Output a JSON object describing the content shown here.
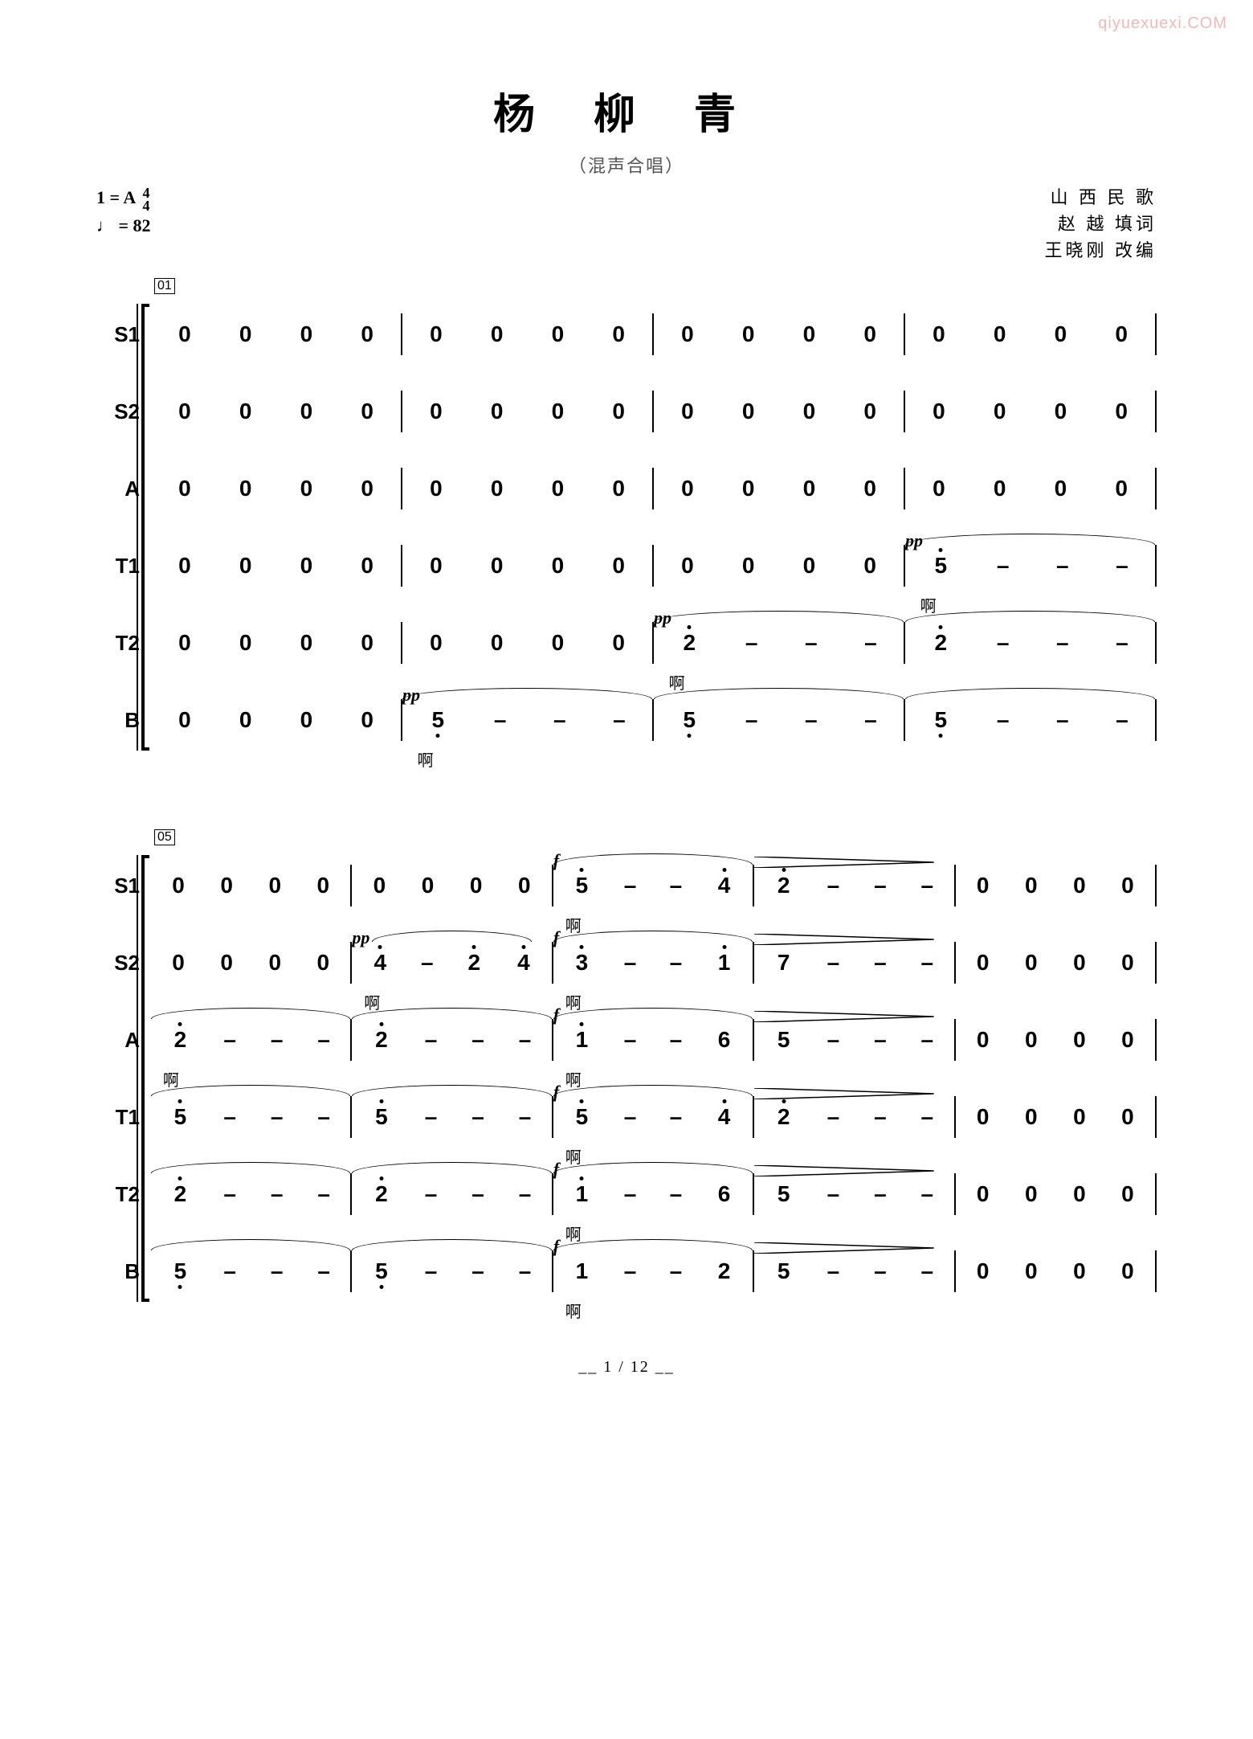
{
  "watermark": "qiyuexuexi.COM",
  "title": "杨  柳  青",
  "subtitle": "（混声合唱）",
  "key": "1 = A",
  "time_top": "4",
  "time_bottom": "4",
  "tempo": "♩ = 82",
  "credits": [
    "山 西 民 歌",
    "赵  越 填词",
    "王晓刚 改编"
  ],
  "page_num": "1 / 12",
  "measure_num_1": "01",
  "measure_num_2": "05",
  "lyric_ah": "啊",
  "dyn_pp": "pp",
  "dyn_f": "f",
  "voices": [
    "S1",
    "S2",
    "A",
    "T1",
    "T2",
    "B"
  ],
  "system1": {
    "S1": [
      [
        "0",
        "0",
        "0",
        "0"
      ],
      [
        "0",
        "0",
        "0",
        "0"
      ],
      [
        "0",
        "0",
        "0",
        "0"
      ],
      [
        "0",
        "0",
        "0",
        "0"
      ]
    ],
    "S2": [
      [
        "0",
        "0",
        "0",
        "0"
      ],
      [
        "0",
        "0",
        "0",
        "0"
      ],
      [
        "0",
        "0",
        "0",
        "0"
      ],
      [
        "0",
        "0",
        "0",
        "0"
      ]
    ],
    "A": [
      [
        "0",
        "0",
        "0",
        "0"
      ],
      [
        "0",
        "0",
        "0",
        "0"
      ],
      [
        "0",
        "0",
        "0",
        "0"
      ],
      [
        "0",
        "0",
        "0",
        "0"
      ]
    ],
    "T1": [
      [
        "0",
        "0",
        "0",
        "0"
      ],
      [
        "0",
        "0",
        "0",
        "0"
      ],
      [
        "0",
        "0",
        "0",
        "0"
      ],
      [
        "5̇",
        "–",
        "–",
        "–"
      ]
    ],
    "T2": [
      [
        "0",
        "0",
        "0",
        "0"
      ],
      [
        "0",
        "0",
        "0",
        "0"
      ],
      [
        "2̇",
        "–",
        "–",
        "–"
      ],
      [
        "2̇",
        "–",
        "–",
        "–"
      ]
    ],
    "B": [
      [
        "0",
        "0",
        "0",
        "0"
      ],
      [
        "5̣",
        "–",
        "–",
        "–"
      ],
      [
        "5̣",
        "–",
        "–",
        "–"
      ],
      [
        "5̣",
        "–",
        "–",
        "–"
      ]
    ]
  },
  "system2": {
    "S1": [
      [
        "0",
        "0",
        "0",
        "0"
      ],
      [
        "0",
        "0",
        "0",
        "0"
      ],
      [
        "5̇",
        "–",
        "–",
        "4̇"
      ],
      [
        "2̇",
        "–",
        "–",
        "–"
      ],
      [
        "0",
        "0",
        "0",
        "0"
      ]
    ],
    "S2": [
      [
        "0",
        "0",
        "0",
        "0"
      ],
      [
        "4̇",
        "–",
        "2̇",
        "4̇"
      ],
      [
        "3̇",
        "–",
        "–",
        "1̇"
      ],
      [
        "7",
        "–",
        "–",
        "–"
      ],
      [
        "0",
        "0",
        "0",
        "0"
      ]
    ],
    "A": [
      [
        "2̇",
        "–",
        "–",
        "–"
      ],
      [
        "2̇",
        "–",
        "–",
        "–"
      ],
      [
        "1̇",
        "–",
        "–",
        "6"
      ],
      [
        "5",
        "–",
        "–",
        "–"
      ],
      [
        "0",
        "0",
        "0",
        "0"
      ]
    ],
    "T1": [
      [
        "5̇",
        "–",
        "–",
        "–"
      ],
      [
        "5̇",
        "–",
        "–",
        "–"
      ],
      [
        "5̇",
        "–",
        "–",
        "4̇"
      ],
      [
        "2̇",
        "–",
        "–",
        "–"
      ],
      [
        "0",
        "0",
        "0",
        "0"
      ]
    ],
    "T2": [
      [
        "2̇",
        "–",
        "–",
        "–"
      ],
      [
        "2̇",
        "–",
        "–",
        "–"
      ],
      [
        "1̇",
        "–",
        "–",
        "6"
      ],
      [
        "5",
        "–",
        "–",
        "–"
      ],
      [
        "0",
        "0",
        "0",
        "0"
      ]
    ],
    "B": [
      [
        "5̣",
        "–",
        "–",
        "–"
      ],
      [
        "5̣",
        "–",
        "–",
        "–"
      ],
      [
        "1",
        "–",
        "–",
        "2"
      ],
      [
        "5",
        "–",
        "–",
        "–"
      ],
      [
        "0",
        "0",
        "0",
        "0"
      ]
    ]
  }
}
